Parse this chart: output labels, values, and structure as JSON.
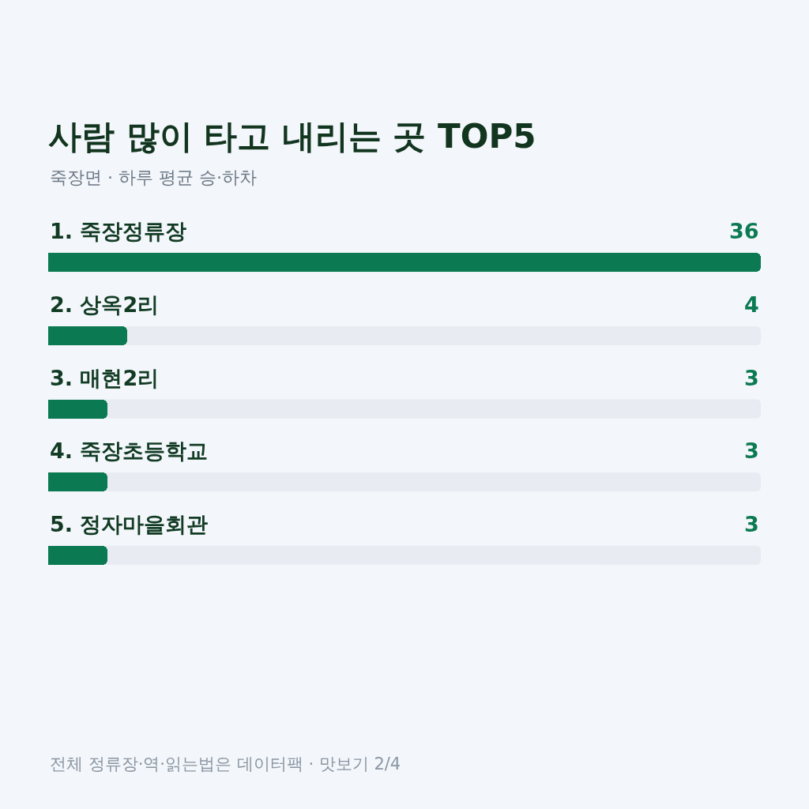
{
  "chart_data": {
    "type": "bar",
    "orientation": "horizontal",
    "title": "사람 많이 타고 내리는 곳 TOP5",
    "subtitle": "죽장면 · 하루 평균 승·하차",
    "categories": [
      "1. 죽장정류장",
      "2. 상옥2리",
      "3. 매현2리",
      "4. 죽장초등학교",
      "5. 정자마을회관"
    ],
    "values": [
      36,
      4,
      3,
      3,
      3
    ],
    "color": "#0b7a52",
    "xlim": [
      0,
      36
    ],
    "data_labels": true,
    "tick_labels": "y",
    "annotations": [
      "전체 정류장·역·읽는법은 데이터팩 · 맛보기 2/4"
    ]
  }
}
